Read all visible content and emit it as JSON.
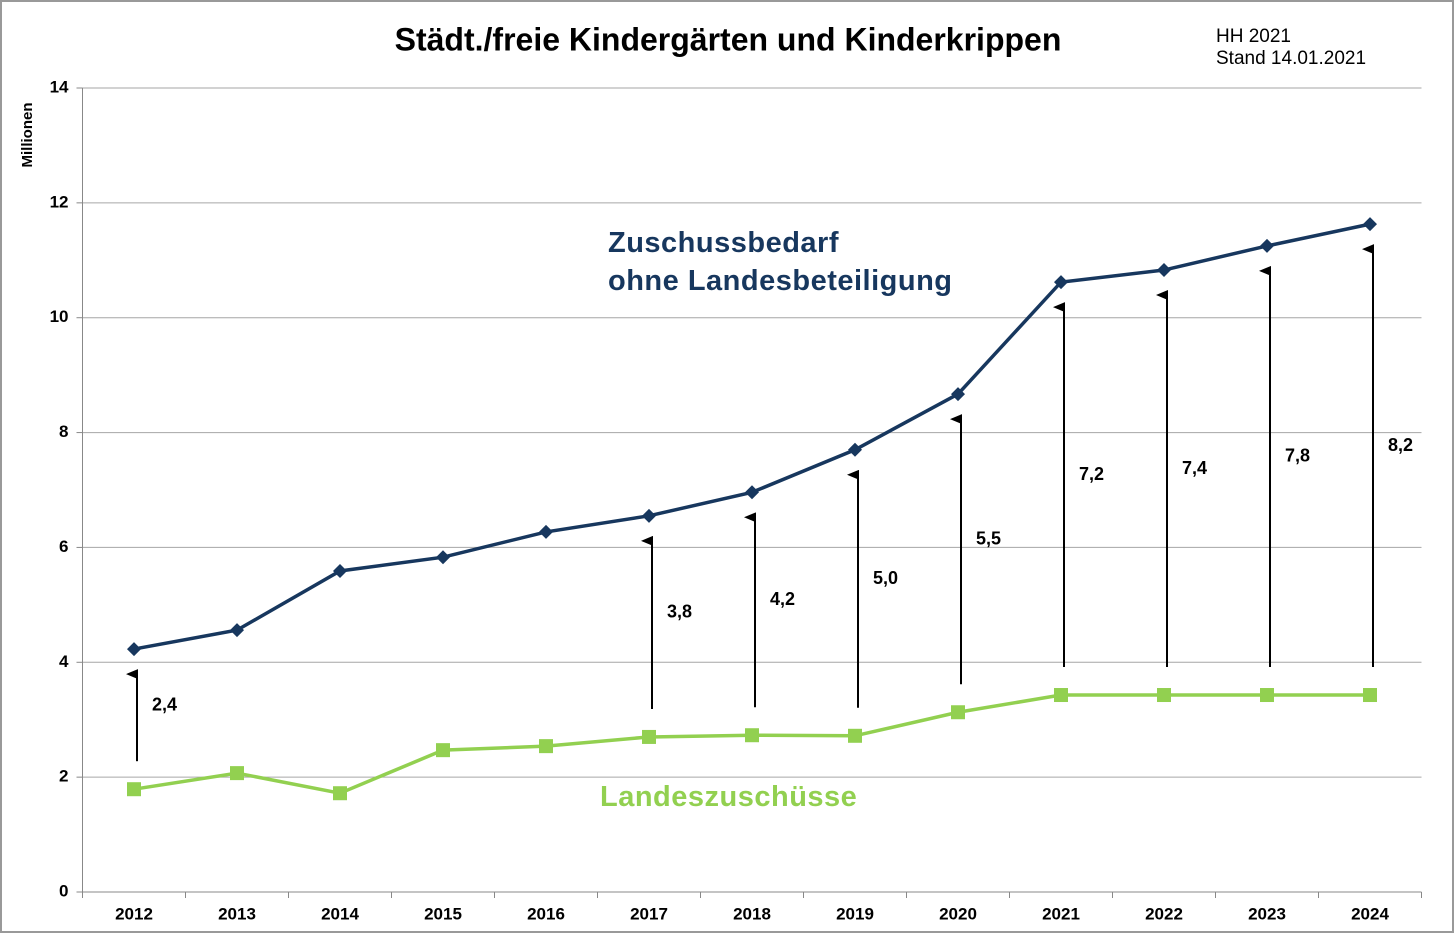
{
  "chart_data": {
    "type": "line",
    "title": "Städt./freie Kindergärten und Kinderkrippen",
    "note": "HH 2021\nStand 14.01.2021",
    "y_label": "Millionen",
    "categories": [
      "2012",
      "2013",
      "2014",
      "2015",
      "2016",
      "2017",
      "2018",
      "2019",
      "2020",
      "2021",
      "2022",
      "2023",
      "2024"
    ],
    "series": [
      {
        "name": "Zuschussbedarf\nohne Landesbeteiligung",
        "color": "#17375e",
        "marker": "diamond",
        "values": [
          4.23,
          4.56,
          5.59,
          5.83,
          6.27,
          6.55,
          6.96,
          7.7,
          8.67,
          10.62,
          10.83,
          11.25,
          11.63
        ]
      },
      {
        "name": "Landeszuschüsse",
        "color": "#92d050",
        "marker": "square",
        "values": [
          1.79,
          2.07,
          1.72,
          2.47,
          2.54,
          2.7,
          2.73,
          2.72,
          3.13,
          3.43,
          3.43,
          3.43,
          3.43
        ]
      }
    ],
    "annotations": [
      {
        "x": "2012",
        "text": "2,4"
      },
      {
        "x": "2017",
        "text": "3,8"
      },
      {
        "x": "2018",
        "text": "4,2"
      },
      {
        "x": "2019",
        "text": "5,0"
      },
      {
        "x": "2020",
        "text": "5,5"
      },
      {
        "x": "2021",
        "text": "7,2"
      },
      {
        "x": "2022",
        "text": "7,4"
      },
      {
        "x": "2023",
        "text": "7,8"
      },
      {
        "x": "2024",
        "text": "8,2"
      }
    ],
    "ylim": [
      0,
      14
    ],
    "yticks": [
      0,
      2,
      4,
      6,
      8,
      10,
      12,
      14
    ],
    "grid": true
  }
}
